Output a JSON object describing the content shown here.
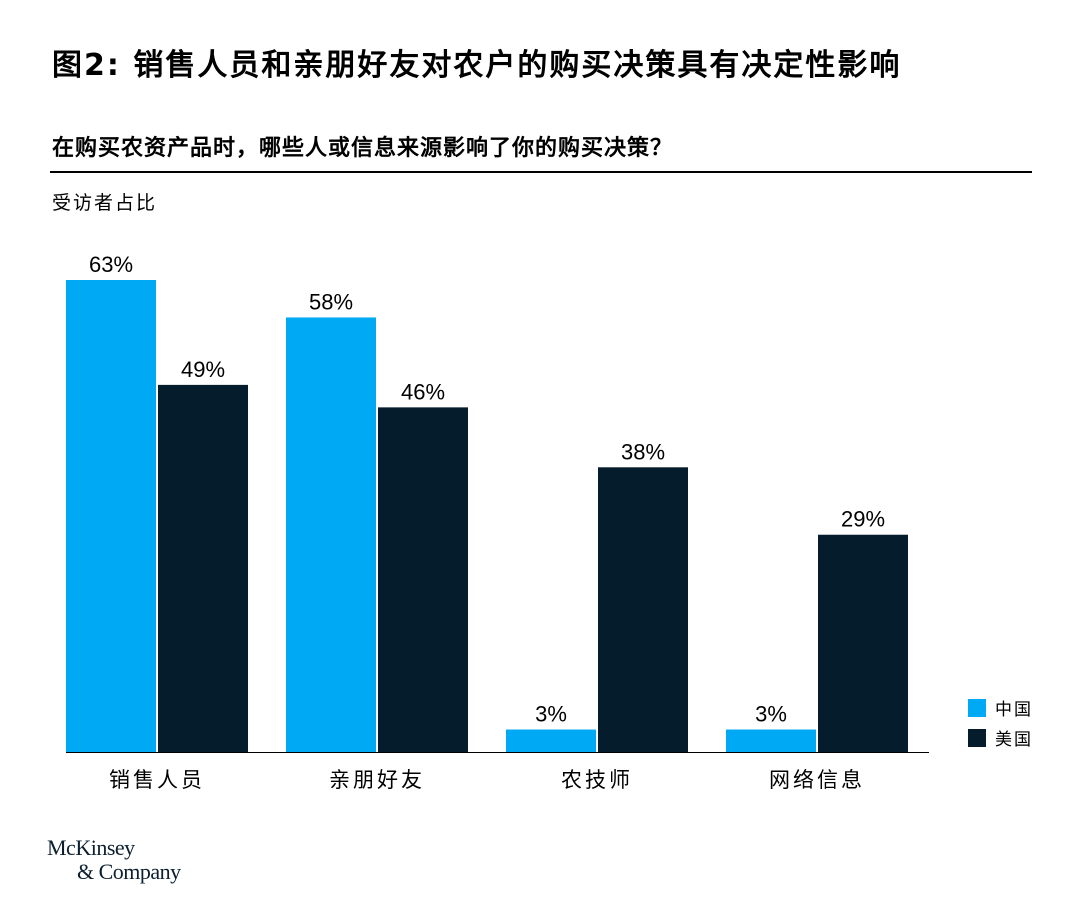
{
  "title": "图2: 销售人员和亲朋好友对农户的购买决策具有决定性影响",
  "subtitle": "在购买农资产品时，哪些人或信息来源影响了你的购买决策？",
  "unit_label": "受访者占比",
  "logo": {
    "line1": "McKinsey",
    "line2": "& Company"
  },
  "chart_data": {
    "type": "bar",
    "categories": [
      "销售人员",
      "亲朋好友",
      "农技师",
      "网络信息"
    ],
    "series": [
      {
        "name": "中国",
        "values": [
          63,
          58,
          3,
          3
        ],
        "labels": [
          "63%",
          "58%",
          "3%",
          "3%"
        ],
        "color": "#00a9f4"
      },
      {
        "name": "美国",
        "values": [
          49,
          46,
          38,
          29
        ],
        "labels": [
          "49%",
          "46%",
          "38%",
          "29%"
        ],
        "color": "#051c2c"
      }
    ],
    "ylim": [
      0,
      63
    ],
    "legend_position": "bottom-right",
    "grid": false
  }
}
